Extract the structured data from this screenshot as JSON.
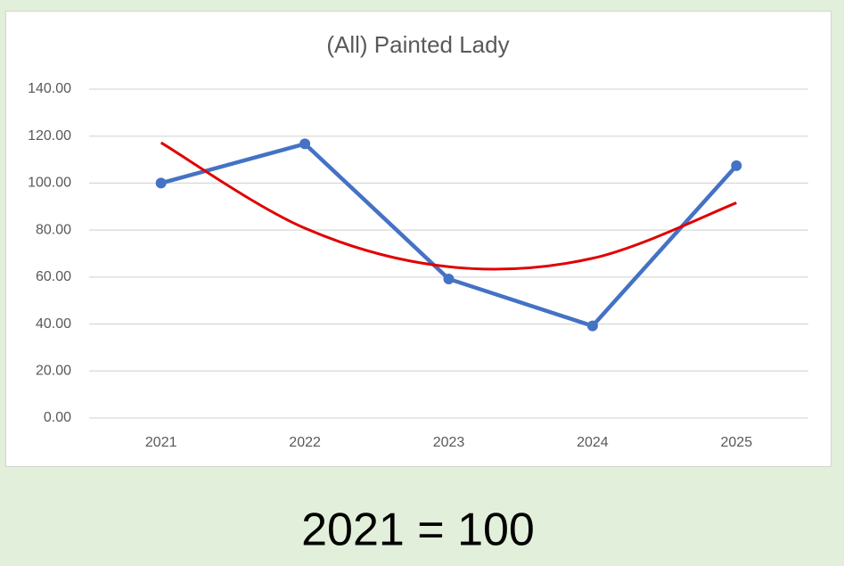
{
  "chart_data": {
    "type": "line",
    "title": "(All) Painted Lady",
    "categories": [
      "2021",
      "2022",
      "2023",
      "2024",
      "2025"
    ],
    "series": [
      {
        "name": "Painted Lady",
        "color": "#4472c4",
        "values": [
          100,
          116.7,
          59.2,
          39.2,
          107.4
        ]
      },
      {
        "color": "#e00000",
        "trendline": true,
        "values": [
          117.2,
          80.8,
          64.4,
          68,
          91.6
        ]
      }
    ],
    "ylim": [
      0,
      140
    ],
    "yticks": [
      {
        "value": 0,
        "label": "0.00"
      },
      {
        "value": 20,
        "label": "20.00"
      },
      {
        "value": 40,
        "label": "40.00"
      },
      {
        "value": 60,
        "label": "60.00"
      },
      {
        "value": 80,
        "label": "80.00"
      },
      {
        "value": 100,
        "label": "100.00"
      },
      {
        "value": 120,
        "label": "120.00"
      },
      {
        "value": 140,
        "label": "140.00"
      }
    ],
    "grid": true,
    "footnote": "2021 = 100"
  }
}
